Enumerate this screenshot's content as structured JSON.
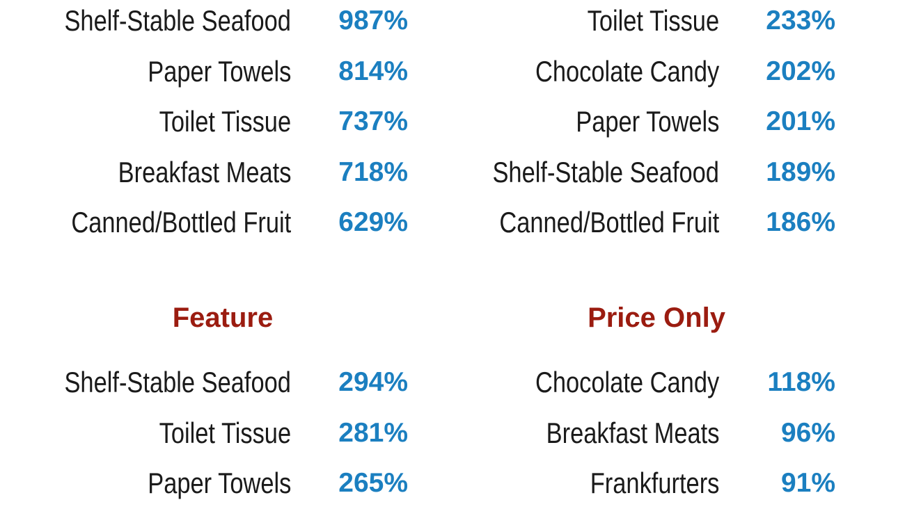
{
  "colors": {
    "value": "#1b7fc0",
    "heading": "#9b1c10",
    "label": "#1a1a1a"
  },
  "sections": [
    {
      "heading": "",
      "rows": [
        {
          "label": "Shelf-Stable Seafood",
          "value": "987%"
        },
        {
          "label": "Paper Towels",
          "value": "814%"
        },
        {
          "label": "Toilet Tissue",
          "value": "737%"
        },
        {
          "label": "Breakfast Meats",
          "value": "718%"
        },
        {
          "label": "Canned/Bottled Fruit",
          "value": "629%"
        }
      ]
    },
    {
      "heading": "",
      "rows": [
        {
          "label": "Toilet Tissue",
          "value": "233%"
        },
        {
          "label": "Chocolate Candy",
          "value": "202%"
        },
        {
          "label": "Paper Towels",
          "value": "201%"
        },
        {
          "label": "Shelf-Stable Seafood",
          "value": "189%"
        },
        {
          "label": "Canned/Bottled Fruit",
          "value": "186%"
        }
      ]
    },
    {
      "heading": "Feature",
      "rows": [
        {
          "label": "Shelf-Stable Seafood",
          "value": "294%"
        },
        {
          "label": "Toilet Tissue",
          "value": "281%"
        },
        {
          "label": "Paper Towels",
          "value": "265%"
        }
      ]
    },
    {
      "heading": "Price Only",
      "rows": [
        {
          "label": "Chocolate Candy",
          "value": "118%"
        },
        {
          "label": "Breakfast Meats",
          "value": "96%"
        },
        {
          "label": "Frankfurters",
          "value": "91%"
        }
      ]
    }
  ]
}
